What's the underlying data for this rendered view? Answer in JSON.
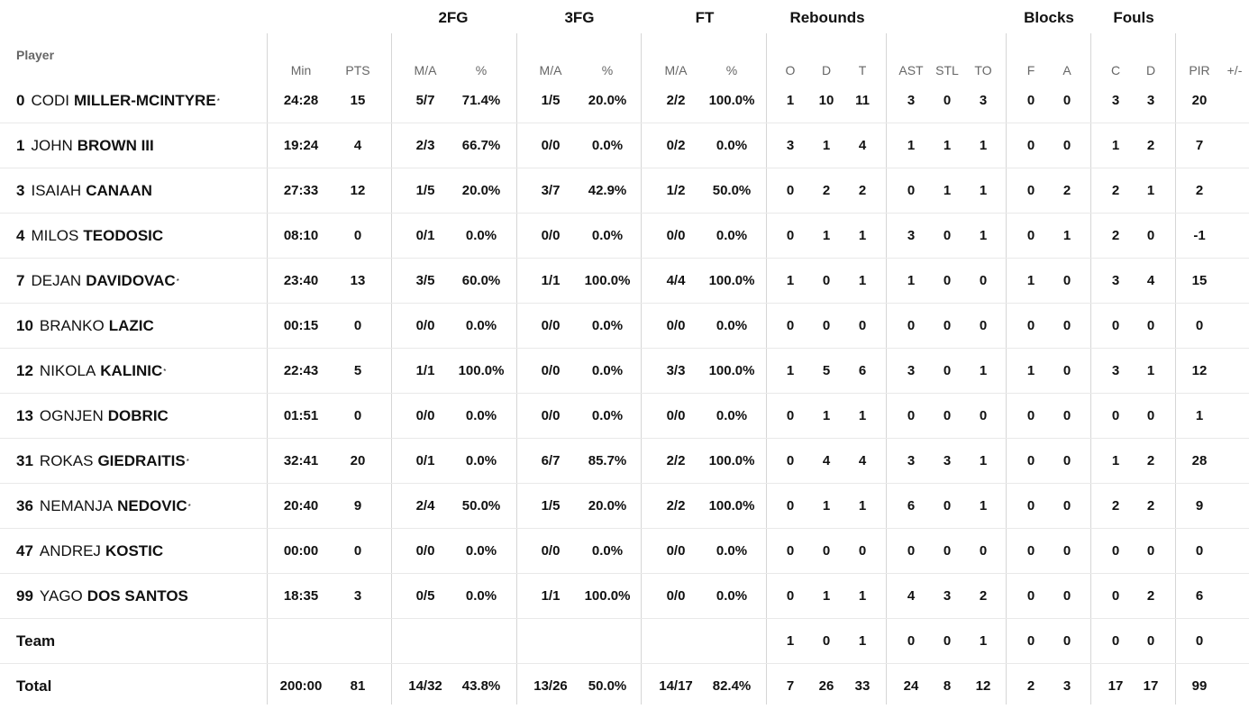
{
  "table": {
    "player_header": "Player",
    "groups": [
      "2FG",
      "3FG",
      "FT",
      "Rebounds",
      "Blocks",
      "Fouls"
    ],
    "columns": [
      "Min",
      "PTS",
      "M/A",
      "%",
      "M/A",
      "%",
      "M/A",
      "%",
      "O",
      "D",
      "T",
      "AST",
      "STL",
      "TO",
      "F",
      "A",
      "C",
      "D",
      "PIR",
      "+/-"
    ],
    "starter_marker": "*",
    "rows": [
      {
        "num": "0",
        "first": "CODI",
        "last": "MILLER-MCINTYRE",
        "starter": true,
        "stats": [
          "24:28",
          "15",
          "5/7",
          "71.4%",
          "1/5",
          "20.0%",
          "2/2",
          "100.0%",
          "1",
          "10",
          "11",
          "3",
          "0",
          "3",
          "0",
          "0",
          "3",
          "3",
          "20",
          ""
        ]
      },
      {
        "num": "1",
        "first": "JOHN",
        "last": "BROWN III",
        "starter": false,
        "stats": [
          "19:24",
          "4",
          "2/3",
          "66.7%",
          "0/0",
          "0.0%",
          "0/2",
          "0.0%",
          "3",
          "1",
          "4",
          "1",
          "1",
          "1",
          "0",
          "0",
          "1",
          "2",
          "7",
          ""
        ]
      },
      {
        "num": "3",
        "first": "ISAIAH",
        "last": "CANAAN",
        "starter": false,
        "stats": [
          "27:33",
          "12",
          "1/5",
          "20.0%",
          "3/7",
          "42.9%",
          "1/2",
          "50.0%",
          "0",
          "2",
          "2",
          "0",
          "1",
          "1",
          "0",
          "2",
          "2",
          "1",
          "2",
          ""
        ]
      },
      {
        "num": "4",
        "first": "MILOS",
        "last": "TEODOSIC",
        "starter": false,
        "stats": [
          "08:10",
          "0",
          "0/1",
          "0.0%",
          "0/0",
          "0.0%",
          "0/0",
          "0.0%",
          "0",
          "1",
          "1",
          "3",
          "0",
          "1",
          "0",
          "1",
          "2",
          "0",
          "-1",
          ""
        ]
      },
      {
        "num": "7",
        "first": "DEJAN",
        "last": "DAVIDOVAC",
        "starter": true,
        "stats": [
          "23:40",
          "13",
          "3/5",
          "60.0%",
          "1/1",
          "100.0%",
          "4/4",
          "100.0%",
          "1",
          "0",
          "1",
          "1",
          "0",
          "0",
          "1",
          "0",
          "3",
          "4",
          "15",
          ""
        ]
      },
      {
        "num": "10",
        "first": "BRANKO",
        "last": "LAZIC",
        "starter": false,
        "stats": [
          "00:15",
          "0",
          "0/0",
          "0.0%",
          "0/0",
          "0.0%",
          "0/0",
          "0.0%",
          "0",
          "0",
          "0",
          "0",
          "0",
          "0",
          "0",
          "0",
          "0",
          "0",
          "0",
          ""
        ]
      },
      {
        "num": "12",
        "first": "NIKOLA",
        "last": "KALINIC",
        "starter": true,
        "stats": [
          "22:43",
          "5",
          "1/1",
          "100.0%",
          "0/0",
          "0.0%",
          "3/3",
          "100.0%",
          "1",
          "5",
          "6",
          "3",
          "0",
          "1",
          "1",
          "0",
          "3",
          "1",
          "12",
          ""
        ]
      },
      {
        "num": "13",
        "first": "OGNJEN",
        "last": "DOBRIC",
        "starter": false,
        "stats": [
          "01:51",
          "0",
          "0/0",
          "0.0%",
          "0/0",
          "0.0%",
          "0/0",
          "0.0%",
          "0",
          "1",
          "1",
          "0",
          "0",
          "0",
          "0",
          "0",
          "0",
          "0",
          "1",
          ""
        ]
      },
      {
        "num": "31",
        "first": "ROKAS",
        "last": "GIEDRAITIS",
        "starter": true,
        "stats": [
          "32:41",
          "20",
          "0/1",
          "0.0%",
          "6/7",
          "85.7%",
          "2/2",
          "100.0%",
          "0",
          "4",
          "4",
          "3",
          "3",
          "1",
          "0",
          "0",
          "1",
          "2",
          "28",
          ""
        ]
      },
      {
        "num": "36",
        "first": "NEMANJA",
        "last": "NEDOVIC",
        "starter": true,
        "stats": [
          "20:40",
          "9",
          "2/4",
          "50.0%",
          "1/5",
          "20.0%",
          "2/2",
          "100.0%",
          "0",
          "1",
          "1",
          "6",
          "0",
          "1",
          "0",
          "0",
          "2",
          "2",
          "9",
          ""
        ]
      },
      {
        "num": "47",
        "first": "ANDREJ",
        "last": "KOSTIC",
        "starter": false,
        "stats": [
          "00:00",
          "0",
          "0/0",
          "0.0%",
          "0/0",
          "0.0%",
          "0/0",
          "0.0%",
          "0",
          "0",
          "0",
          "0",
          "0",
          "0",
          "0",
          "0",
          "0",
          "0",
          "0",
          ""
        ]
      },
      {
        "num": "99",
        "first": "YAGO",
        "last": "DOS SANTOS",
        "starter": false,
        "stats": [
          "18:35",
          "3",
          "0/5",
          "0.0%",
          "1/1",
          "100.0%",
          "0/0",
          "0.0%",
          "0",
          "1",
          "1",
          "4",
          "3",
          "2",
          "0",
          "0",
          "0",
          "2",
          "6",
          ""
        ]
      },
      {
        "label": "Team",
        "stats": [
          "",
          "",
          "",
          "",
          "",
          "",
          "",
          "",
          "1",
          "0",
          "1",
          "0",
          "0",
          "1",
          "0",
          "0",
          "0",
          "0",
          "0",
          ""
        ]
      },
      {
        "label": "Total",
        "stats": [
          "200:00",
          "81",
          "14/32",
          "43.8%",
          "13/26",
          "50.0%",
          "14/17",
          "82.4%",
          "7",
          "26",
          "33",
          "24",
          "8",
          "12",
          "2",
          "3",
          "17",
          "17",
          "99",
          ""
        ]
      }
    ]
  }
}
